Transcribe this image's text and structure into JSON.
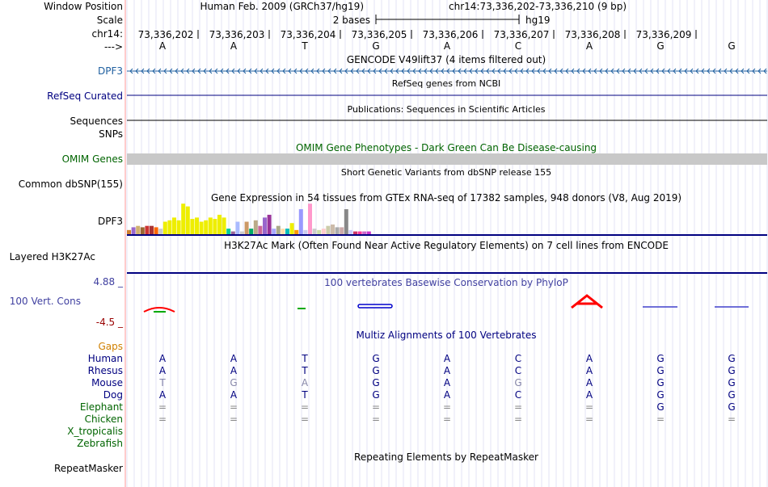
{
  "header": {
    "window_position_label": "Window Position",
    "scale_label": "Scale",
    "chrom_label": "chr14:",
    "strand_label": "--->",
    "assembly": "Human Feb. 2009 (GRCh37/hg19)",
    "range": "chr14:73,336,202-73,336,210 (9 bp)",
    "scale_text": "2 bases",
    "scale_db": "hg19"
  },
  "positions": [
    "73,336,202",
    "73,336,203",
    "73,336,204",
    "73,336,205",
    "73,336,206",
    "73,336,207",
    "73,336,208",
    "73,336,209"
  ],
  "bases": [
    "A",
    "A",
    "T",
    "G",
    "A",
    "C",
    "A",
    "G",
    "G"
  ],
  "tracks": {
    "gencode": {
      "title": "GENCODE V49lift37 (4 items filtered out)",
      "label": "DPF3"
    },
    "refseq": {
      "title": "RefSeq genes from NCBI",
      "label": "RefSeq Curated"
    },
    "publications": {
      "title": "Publications: Sequences in Scientific Articles",
      "label_a": "Sequences",
      "label_b": "SNPs"
    },
    "omim": {
      "title": "OMIM Gene Phenotypes - Dark Green Can Be Disease-causing",
      "label": "OMIM Genes"
    },
    "dbsnp": {
      "title": "Short Genetic Variants from dbSNP release 155",
      "label": "Common dbSNP(155)"
    },
    "gtex": {
      "title": "Gene Expression in 54 tissues from GTEx RNA-seq of 17382 samples, 948 donors (V8, Aug 2019)",
      "label": "DPF3"
    },
    "h3k27ac": {
      "title": "H3K27Ac Mark (Often Found Near Active Regulatory Elements) on 7 cell lines from ENCODE",
      "label": "Layered H3K27Ac"
    },
    "phylop": {
      "title": "100 vertebrates Basewise Conservation by PhyloP",
      "label": "100 Vert. Cons",
      "max": "4.88 _",
      "min": "-4.5 _"
    },
    "multiz": {
      "title": "Multiz Alignments of 100 Vertebrates"
    },
    "repeatmasker": {
      "title": "Repeating Elements by RepeatMasker",
      "label": "RepeatMasker"
    }
  },
  "species": [
    {
      "name": "Gaps",
      "color": "#d08000",
      "bases": []
    },
    {
      "name": "Human",
      "color": "#000080",
      "bases": [
        "A",
        "A",
        "T",
        "G",
        "A",
        "C",
        "A",
        "G",
        "G"
      ]
    },
    {
      "name": "Rhesus",
      "color": "#000080",
      "bases": [
        "A",
        "A",
        "T",
        "G",
        "A",
        "C",
        "A",
        "G",
        "G"
      ]
    },
    {
      "name": "Mouse",
      "color": "#000080",
      "bases": [
        "T",
        "G",
        "A",
        "G",
        "A",
        "G",
        "A",
        "G",
        "G"
      ]
    },
    {
      "name": "Dog",
      "color": "#000080",
      "bases": [
        "A",
        "A",
        "T",
        "G",
        "A",
        "C",
        "A",
        "G",
        "G"
      ]
    },
    {
      "name": "Elephant",
      "color": "#006400",
      "bases": [
        "=",
        "=",
        "=",
        "=",
        "=",
        "=",
        "=",
        "G",
        "G"
      ]
    },
    {
      "name": "Chicken",
      "color": "#006400",
      "bases": [
        "=",
        "=",
        "=",
        "=",
        "=",
        "=",
        "=",
        "=",
        "="
      ]
    },
    {
      "name": "X_tropicalis",
      "color": "#006400",
      "bases": []
    },
    {
      "name": "Zebrafish",
      "color": "#006400",
      "bases": []
    }
  ],
  "mouse_mismatch": [
    true,
    true,
    true,
    false,
    false,
    true,
    false,
    false,
    false
  ],
  "gtex_bars": [
    {
      "v": 3,
      "c": "#d08030"
    },
    {
      "v": 5,
      "c": "#9966cc"
    },
    {
      "v": 6,
      "c": "#d0b070"
    },
    {
      "v": 5,
      "c": "#996633"
    },
    {
      "v": 6,
      "c": "#cc3333"
    },
    {
      "v": 6,
      "c": "#aa3333"
    },
    {
      "v": 5,
      "c": "#ff6600"
    },
    {
      "v": 4,
      "c": "#cccccc"
    },
    {
      "v": 9,
      "c": "#eeee00"
    },
    {
      "v": 10,
      "c": "#eeee00"
    },
    {
      "v": 12,
      "c": "#eeee00"
    },
    {
      "v": 10,
      "c": "#eeee00"
    },
    {
      "v": 22,
      "c": "#eeee00"
    },
    {
      "v": 20,
      "c": "#eeee00"
    },
    {
      "v": 11,
      "c": "#eeee00"
    },
    {
      "v": 12,
      "c": "#eeee00"
    },
    {
      "v": 9,
      "c": "#eeee00"
    },
    {
      "v": 10,
      "c": "#eeee00"
    },
    {
      "v": 12,
      "c": "#eeee00"
    },
    {
      "v": 11,
      "c": "#eeee00"
    },
    {
      "v": 14,
      "c": "#eeee00"
    },
    {
      "v": 12,
      "c": "#eeee00"
    },
    {
      "v": 4,
      "c": "#00cc99"
    },
    {
      "v": 2,
      "c": "#996699"
    },
    {
      "v": 9,
      "c": "#aabbff"
    },
    {
      "v": 2,
      "c": "#cccccc"
    },
    {
      "v": 9,
      "c": "#cc9966"
    },
    {
      "v": 4,
      "c": "#00aa66"
    },
    {
      "v": 10,
      "c": "#bbaa88"
    },
    {
      "v": 6,
      "c": "#cc6699"
    },
    {
      "v": 12,
      "c": "#9966cc"
    },
    {
      "v": 14,
      "c": "#993399"
    },
    {
      "v": 4,
      "c": "#aaaaff"
    },
    {
      "v": 6,
      "c": "#aaaa88"
    },
    {
      "v": 4,
      "c": "#ffddaa"
    },
    {
      "v": 4,
      "c": "#00bbbb"
    },
    {
      "v": 8,
      "c": "#eeee00"
    },
    {
      "v": 3,
      "c": "#ff9900"
    },
    {
      "v": 18,
      "c": "#9999ff"
    },
    {
      "v": 3,
      "c": "#ccccee"
    },
    {
      "v": 22,
      "c": "#ff99cc"
    },
    {
      "v": 4,
      "c": "#cccccc"
    },
    {
      "v": 3,
      "c": "#ccddaa"
    },
    {
      "v": 4,
      "c": "#ffcccc"
    },
    {
      "v": 6,
      "c": "#ccccaa"
    },
    {
      "v": 7,
      "c": "#ccbbaa"
    },
    {
      "v": 5,
      "c": "#aaaaaa"
    },
    {
      "v": 5,
      "c": "#ccaaaa"
    },
    {
      "v": 18,
      "c": "#888888"
    },
    {
      "v": 3,
      "c": "#ccccff"
    },
    {
      "v": 2,
      "c": "#cc3366"
    },
    {
      "v": 2,
      "c": "#ff3399"
    },
    {
      "v": 2,
      "c": "#cc66cc"
    },
    {
      "v": 2,
      "c": "#cc33cc"
    }
  ],
  "colors": {
    "track_label_blue": "#2060a0",
    "refseq_label": "#000080",
    "omim_label": "#006400",
    "phylop_label": "#4040a0",
    "phylop_line": "#000080",
    "divider": "#ff9999",
    "gridline": "#d0d0f0",
    "omim_bar": "#c8c8c8",
    "conservation_peak": "#ff0000"
  }
}
